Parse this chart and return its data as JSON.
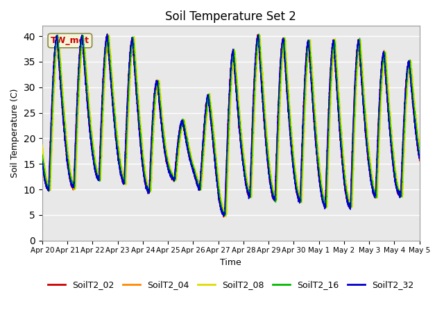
{
  "title": "Soil Temperature Set 2",
  "xlabel": "Time",
  "ylabel": "Soil Temperature (C)",
  "ylim": [
    0,
    42
  ],
  "yticks": [
    0,
    5,
    10,
    15,
    20,
    25,
    30,
    35,
    40
  ],
  "background_color": "#e8e8e8",
  "fig_color": "#ffffff",
  "annotation_text": "TW_met",
  "annotation_color": "#cc0000",
  "annotation_bg": "#f5f5dc",
  "legend_labels": [
    "SoilT2_02",
    "SoilT2_04",
    "SoilT2_08",
    "SoilT2_16",
    "SoilT2_32"
  ],
  "line_colors": [
    "#cc0000",
    "#ff8800",
    "#dddd00",
    "#00bb00",
    "#0000cc"
  ],
  "line_width": 1.0,
  "num_points": 7200,
  "start_day": 0,
  "end_day": 15,
  "xtick_labels": [
    "Apr 20",
    "Apr 21",
    "Apr 22",
    "Apr 23",
    "Apr 24",
    "Apr 25",
    "Apr 26",
    "Apr 27",
    "Apr 28",
    "Apr 29",
    "Apr 30",
    "May 1",
    "May 2",
    "May 3",
    "May 4",
    "May 5"
  ],
  "xtick_positions": [
    0,
    1,
    2,
    3,
    4,
    5,
    6,
    7,
    8,
    9,
    10,
    11,
    12,
    13,
    14,
    15
  ]
}
